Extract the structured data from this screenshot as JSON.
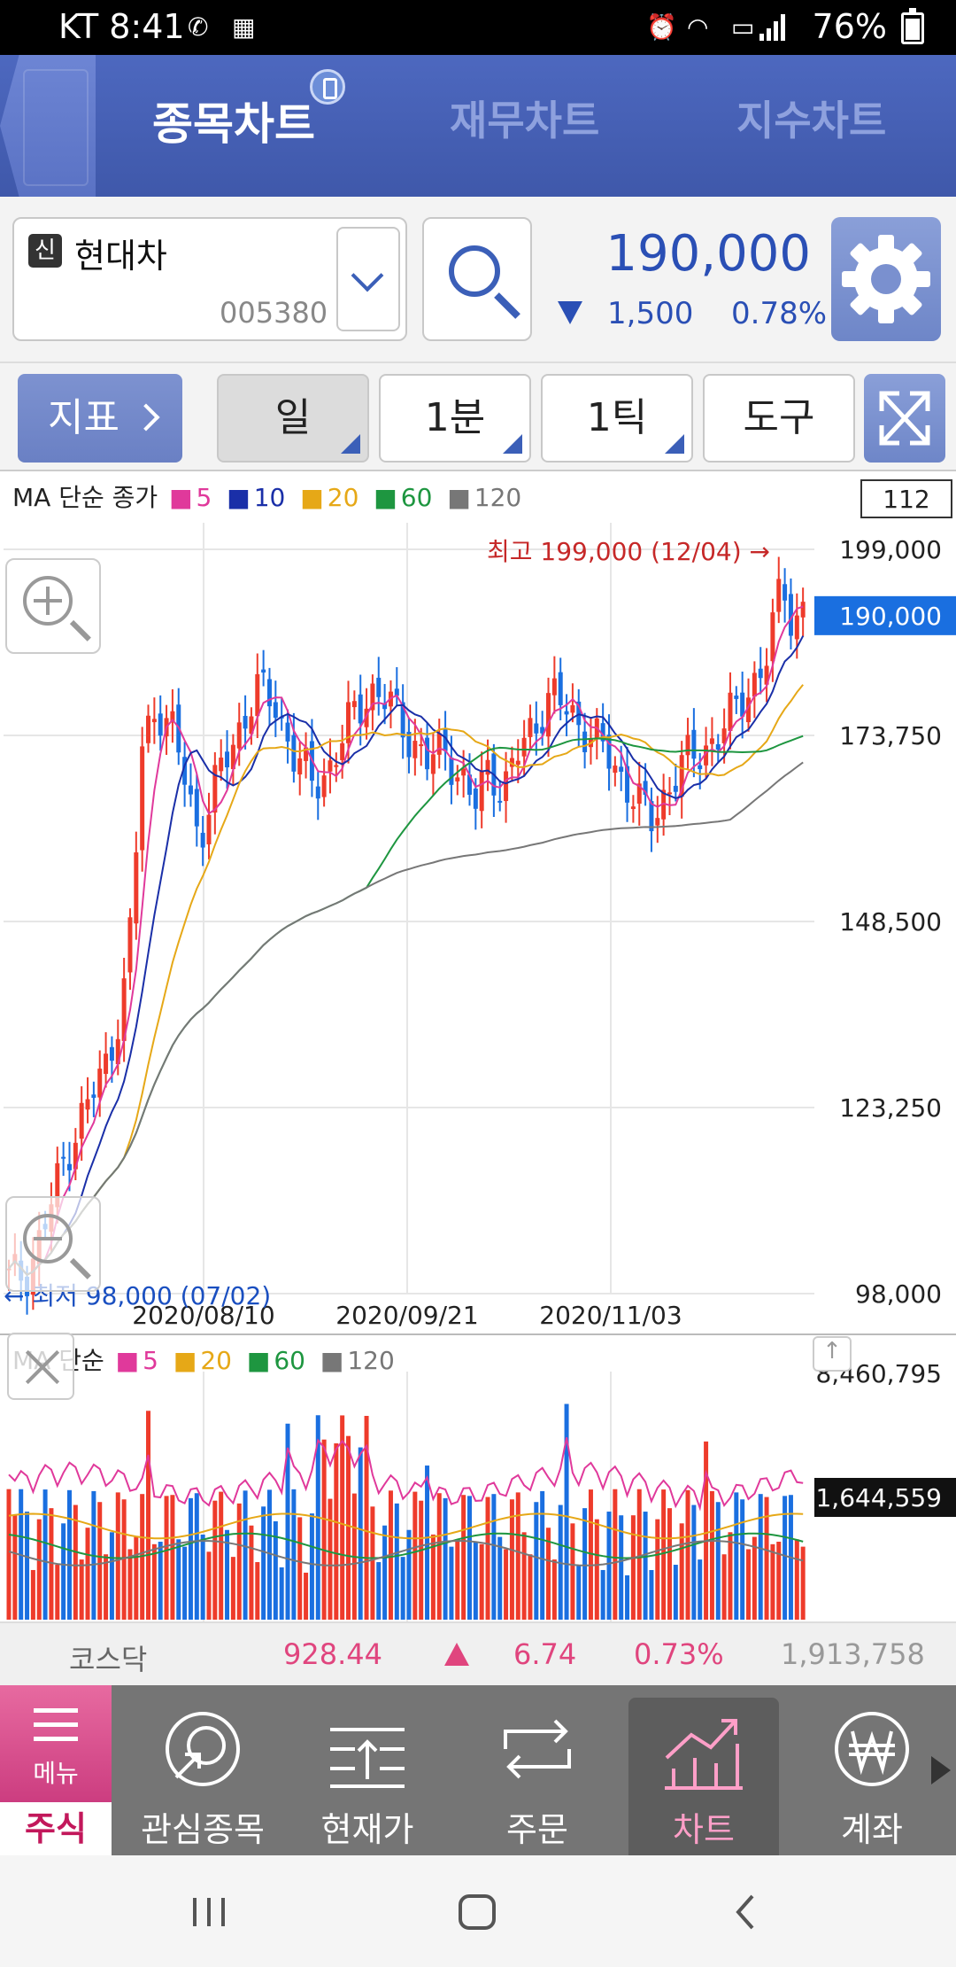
{
  "status": {
    "carrier_time": "KT 8:41",
    "battery": "76%"
  },
  "tabs": [
    {
      "label": "종목차트",
      "active": true
    },
    {
      "label": "재무차트",
      "active": false
    },
    {
      "label": "지수차트",
      "active": false
    }
  ],
  "stock": {
    "badge": "신",
    "name": "현대차",
    "code": "005380",
    "price": "190,000",
    "change": "1,500",
    "change_pct": "0.78%"
  },
  "toolbar": {
    "indicator_label": "지표",
    "period_day": "일",
    "period_min": "1분",
    "period_tick": "1틱",
    "tools": "도구"
  },
  "chart": {
    "legend_prefix": "MA 단순 종가",
    "legend_items": [
      {
        "label": "5",
        "color": "#e0399b"
      },
      {
        "label": "10",
        "color": "#1a2fa8"
      },
      {
        "label": "20",
        "color": "#e6a817"
      },
      {
        "label": "60",
        "color": "#1e9640"
      },
      {
        "label": "120",
        "color": "#777777"
      }
    ],
    "counter": "112",
    "high_label": "최고 199,000 (12/04) →",
    "low_label": "← 최저 98,000 (07/02)",
    "current_price_label": "190,000",
    "y_labels": [
      "199,000",
      "173,750",
      "148,500",
      "123,250",
      "98,000"
    ],
    "x_labels": [
      "2020/08/10",
      "2020/09/21",
      "2020/11/03"
    ]
  },
  "volume": {
    "legend_prefix": "MA 단순",
    "legend_items": [
      {
        "label": "5",
        "color": "#e0399b"
      },
      {
        "label": "20",
        "color": "#e6a817"
      },
      {
        "label": "60",
        "color": "#1e9640"
      },
      {
        "label": "120",
        "color": "#777777"
      }
    ],
    "max_label": "8,460,795",
    "current_label": "1,644,559"
  },
  "chart_data": {
    "type": "candlestick",
    "title": "",
    "ylim": [
      98000,
      199000
    ],
    "y_ticks": [
      98000,
      123250,
      148500,
      173750,
      199000
    ],
    "x_tick_labels": [
      "2020/08/10",
      "2020/09/21",
      "2020/11/03"
    ],
    "high": {
      "value": 199000,
      "date": "12/04"
    },
    "low": {
      "value": 98000,
      "date": "07/02"
    },
    "last_close": 190000,
    "grid": true,
    "series": [
      "MA5",
      "MA10",
      "MA20",
      "MA60",
      "MA120"
    ],
    "volume_max": 8460795,
    "volume_last": 1644559
  },
  "kosdaq": {
    "name": "코스닥",
    "value": "928.44",
    "change": "6.74",
    "change_pct": "0.73%",
    "volume": "1,913,758"
  },
  "nav": {
    "menu_label": "메뉴",
    "stock_label": "주식",
    "items": [
      "관심종목",
      "현재가",
      "주문",
      "차트",
      "계좌"
    ]
  }
}
